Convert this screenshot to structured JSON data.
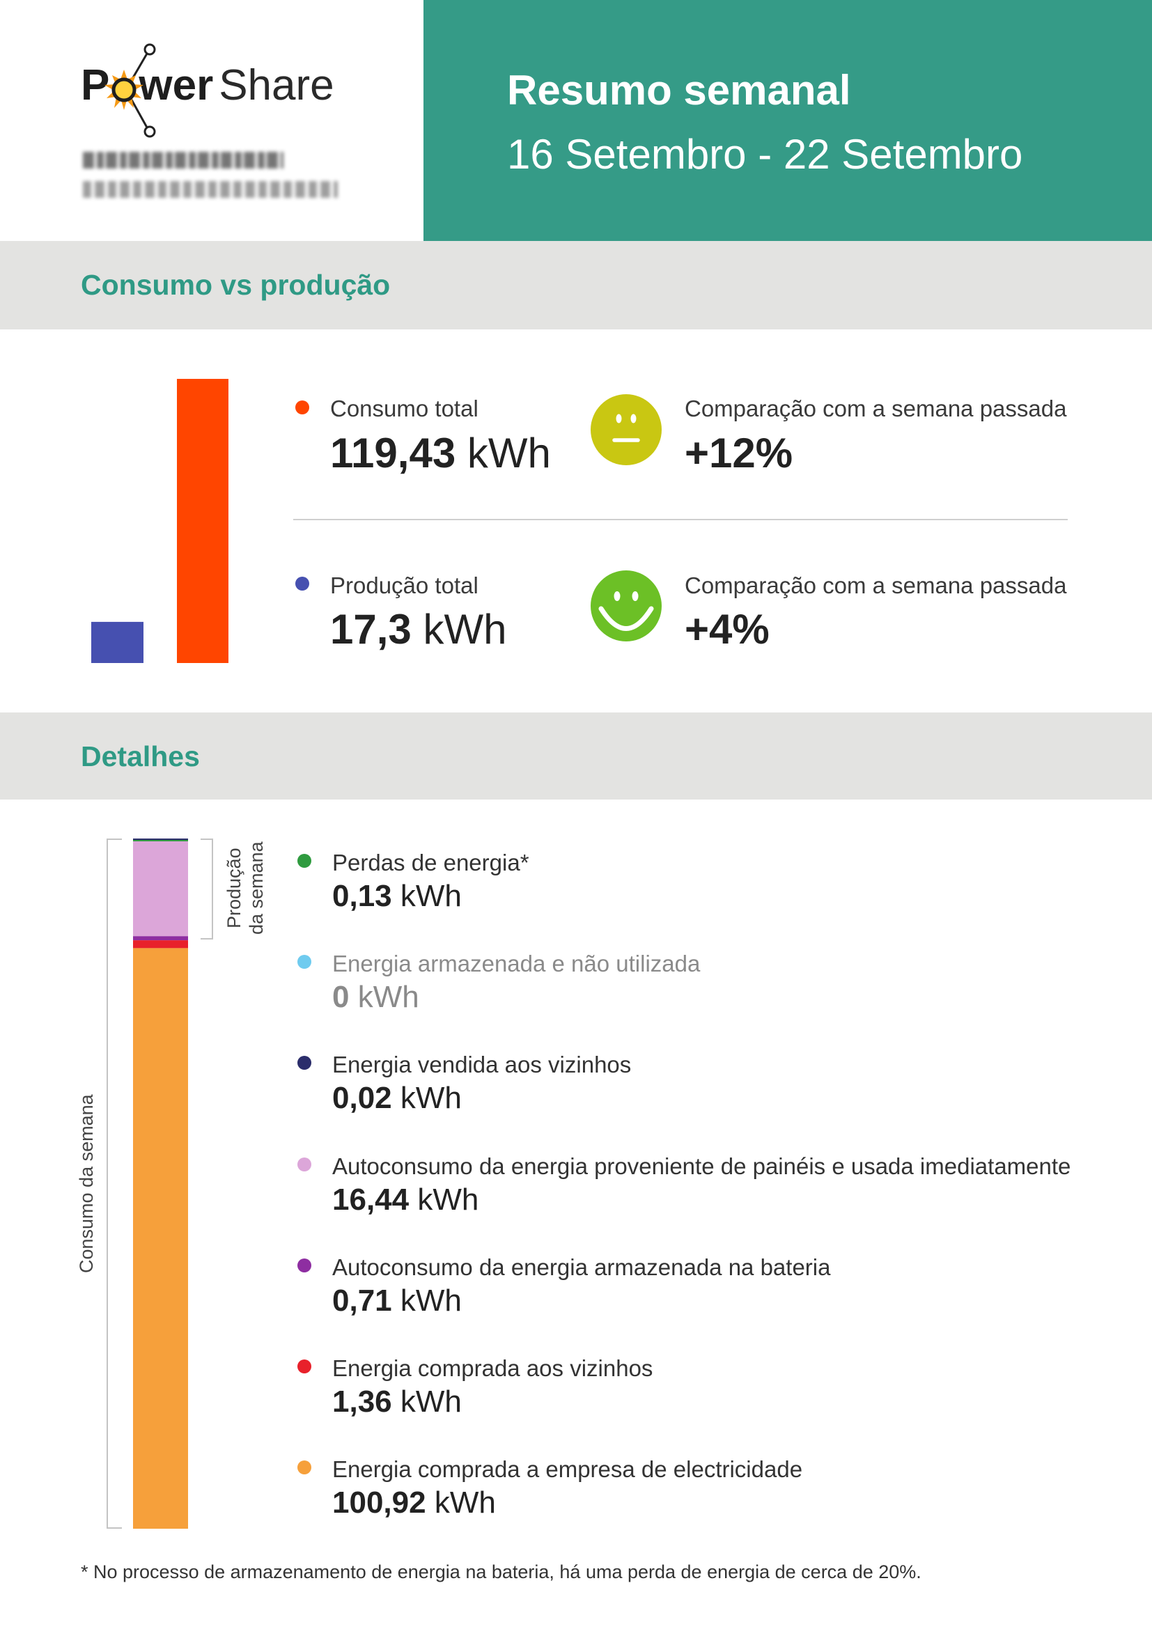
{
  "logo": {
    "letter_p": "P",
    "letters_wer": "wer",
    "word_share": "Share",
    "sun_icon": "sun-icon"
  },
  "header": {
    "title": "Resumo semanal",
    "date_range": "16 Setembro - 22 Setembro",
    "bg_color": "#359b87"
  },
  "sections": {
    "comparison_title": "Consumo vs produção",
    "details_title": "Detalhes"
  },
  "summary": {
    "consumption": {
      "label": "Consumo total",
      "value": "119,43",
      "unit": "kWh",
      "dot_color": "#ff4500",
      "comparison_label": "Comparação com a semana passada",
      "comparison_value": "+12%",
      "mood_icon": "neutral-face-icon",
      "mood_color": "#c9c712"
    },
    "production": {
      "label": "Produção total",
      "value": "17,3",
      "unit": "kWh",
      "dot_color": "#4650b0",
      "comparison_label": "Comparação com a semana passada",
      "comparison_value": "+4%",
      "mood_icon": "smiling-face-icon",
      "mood_color": "#6cc026"
    }
  },
  "details": {
    "bracket_consumption": "Consumo da semana",
    "bracket_production": "Produção da semana",
    "items": [
      {
        "label": "Perdas de energia*",
        "value": "0,13",
        "unit": "kWh",
        "color": "#2f9b3f"
      },
      {
        "label": "Energia armazenada e não utilizada",
        "value": "0",
        "unit": "kWh",
        "color": "#6fcbef"
      },
      {
        "label": "Energia vendida aos vizinhos",
        "value": "0,02",
        "unit": "kWh",
        "color": "#2b2d6b"
      },
      {
        "label": "Autoconsumo da energia proveniente de painéis e usada imediatamente",
        "value": "16,44",
        "unit": "kWh",
        "color": "#dca6d9"
      },
      {
        "label": "Autoconsumo da energia armazenada na bateria",
        "value": "0,71",
        "unit": "kWh",
        "color": "#8e2ea1"
      },
      {
        "label": "Energia comprada aos vizinhos",
        "value": "1,36",
        "unit": "kWh",
        "color": "#e8212b"
      },
      {
        "label": "Energia comprada a empresa de electricidade",
        "value": "100,92",
        "unit": "kWh",
        "color": "#f6a03b"
      }
    ]
  },
  "footnote": "* No processo de armazenamento de energia na bateria, há uma perda de energia de cerca de 20%.",
  "chart_data": [
    {
      "type": "bar",
      "values": [
        17.3,
        119.43
      ],
      "colors": [
        "#4650b0",
        "#ff4500"
      ],
      "ylim": [
        0,
        119.43
      ]
    },
    {
      "type": "bar",
      "stacked": true,
      "orientation": "vertical, top to bottom",
      "values": [
        0.02,
        0.13,
        0,
        16.44,
        0.71,
        1.36,
        100.92
      ],
      "colors": [
        "#2b2d6b",
        "#2f9b3f",
        "#6fcbef",
        "#dca6d9",
        "#8e2ea1",
        "#e8212b",
        "#f6a03b"
      ]
    }
  ]
}
